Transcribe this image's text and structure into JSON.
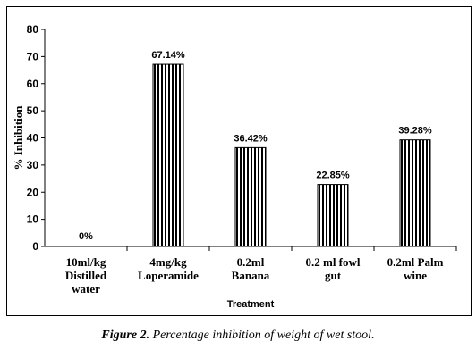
{
  "chart_data": {
    "type": "bar",
    "categories": [
      [
        "10ml/kg",
        "Distilled",
        "water"
      ],
      [
        "4mg/kg",
        "Loperamide"
      ],
      [
        "0.2ml",
        "Banana"
      ],
      [
        "0.2 ml fowl",
        "gut"
      ],
      [
        "0.2ml Palm",
        "wine"
      ]
    ],
    "values": [
      0,
      67.14,
      36.42,
      22.85,
      39.28
    ],
    "data_labels": [
      "0%",
      "67.14%",
      "36.42%",
      "22.85%",
      "39.28%"
    ],
    "xlabel": "Treatment",
    "ylabel": "% Inhibition",
    "ylim": [
      0,
      80
    ],
    "yticks": [
      "0",
      "10",
      "20",
      "30",
      "40",
      "50",
      "60",
      "70",
      "80"
    ],
    "bar_pattern": "vertical-stripes",
    "grid": false,
    "legend": "none"
  },
  "caption": {
    "label": "Figure 2.",
    "text": "Percentage inhibition of weight of wet stool."
  }
}
